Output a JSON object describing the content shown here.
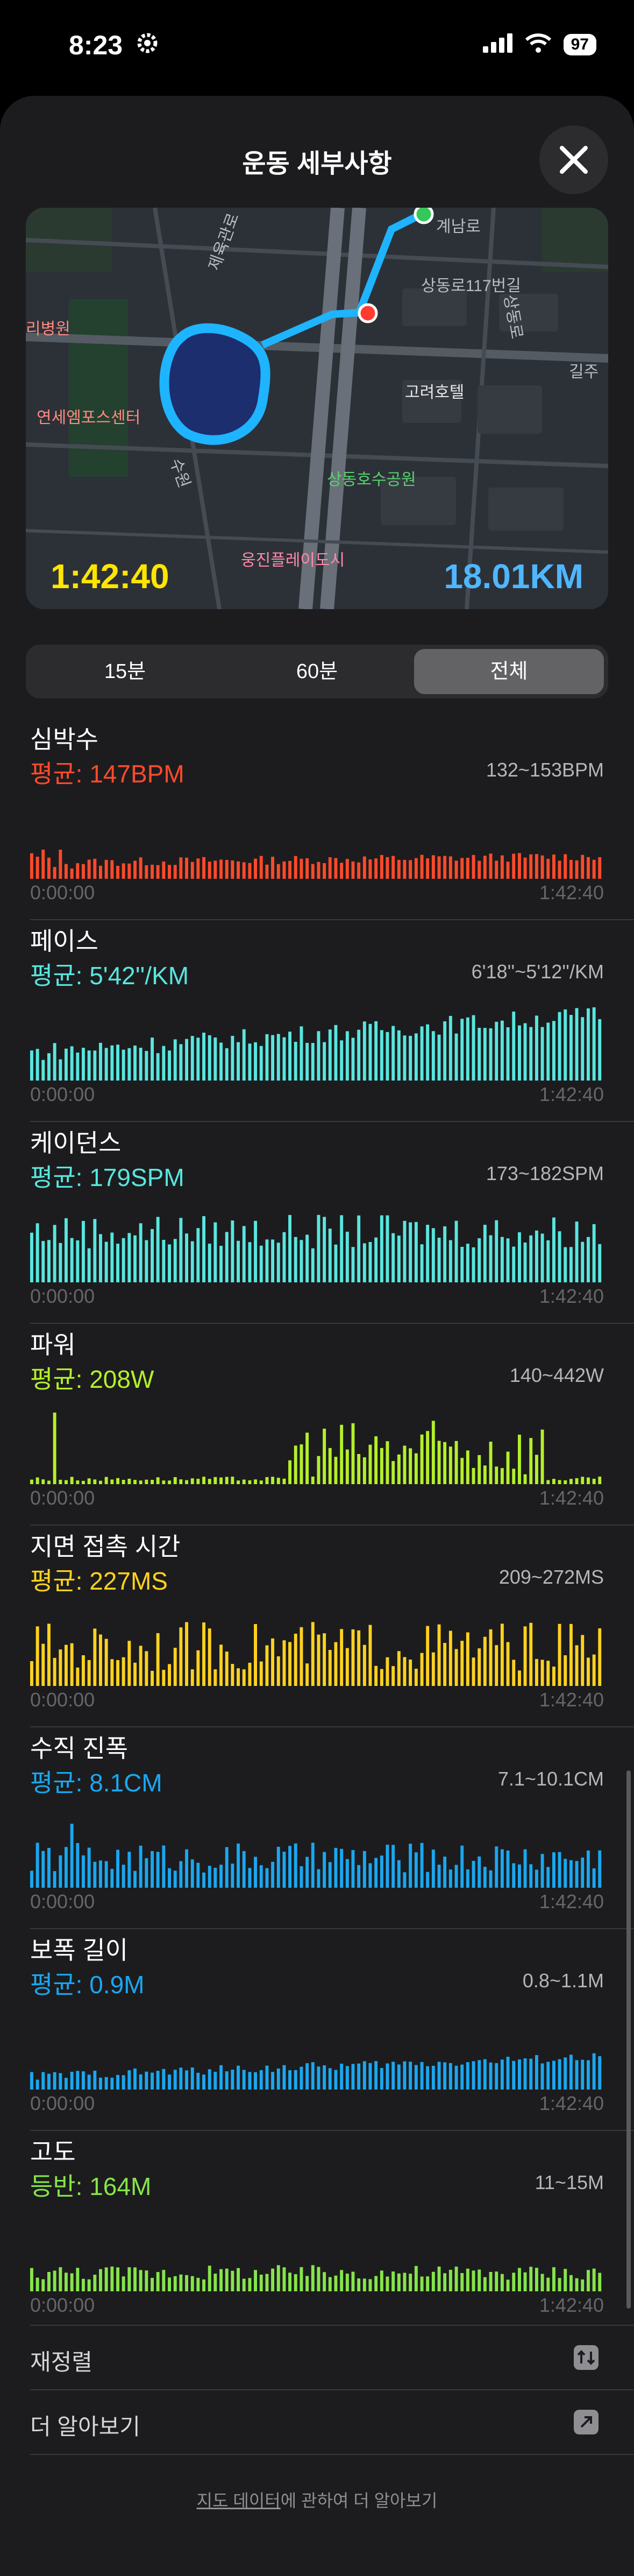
{
  "status_bar": {
    "time": "8:23",
    "battery": "97"
  },
  "header": {
    "title": "운동 세부사항"
  },
  "map": {
    "elapsed": "1:42:40",
    "distance": "18.01KM",
    "labels": [
      "계남로",
      "제육관로",
      "상동로117번길",
      "고려호텔",
      "리병원",
      "연세엠포스센터",
      "상동호수공원",
      "웅진플레이도시",
      "길주",
      "수원",
      "상동로"
    ]
  },
  "segments": [
    {
      "label": "15분",
      "selected": false
    },
    {
      "label": "60분",
      "selected": false
    },
    {
      "label": "전체",
      "selected": true
    }
  ],
  "metrics": [
    {
      "key": "hr",
      "title": "심박수",
      "avg": "평균: 147BPM",
      "range": "132~153BPM",
      "start": "0:00:00",
      "end": "1:42:40",
      "color": "#ff4a2a",
      "mode": "hr"
    },
    {
      "key": "pace",
      "title": "페이스",
      "avg": "평균: 5'42''/KM",
      "range": "6'18''~5'12''/KM",
      "start": "0:00:00",
      "end": "1:42:40",
      "color": "#58e6df",
      "mode": "pace"
    },
    {
      "key": "cadence",
      "title": "케이던스",
      "avg": "평균: 179SPM",
      "range": "173~182SPM",
      "start": "0:00:00",
      "end": "1:42:40",
      "color": "#58e6df",
      "mode": "cad"
    },
    {
      "key": "power",
      "title": "파워",
      "avg": "평균: 208W",
      "range": "140~442W",
      "start": "0:00:00",
      "end": "1:42:40",
      "color": "#b4f02a",
      "mode": "power"
    },
    {
      "key": "gct",
      "title": "지면 접촉 시간",
      "avg": "평균: 227MS",
      "range": "209~272MS",
      "start": "0:00:00",
      "end": "1:42:40",
      "color": "#ffd21f",
      "mode": "gct"
    },
    {
      "key": "vo",
      "title": "수직 진폭",
      "avg": "평균: 8.1CM",
      "range": "7.1~10.1CM",
      "start": "0:00:00",
      "end": "1:42:40",
      "color": "#1aa7f0",
      "mode": "vo"
    },
    {
      "key": "stride",
      "title": "보폭 길이",
      "avg": "평균: 0.9M",
      "range": "0.8~1.1M",
      "start": "0:00:00",
      "end": "1:42:40",
      "color": "#1aa7f0",
      "mode": "stride"
    },
    {
      "key": "elev",
      "title": "고도",
      "avg": "등반: 164M",
      "range": "11~15M",
      "start": "0:00:00",
      "end": "1:42:40",
      "color": "#86e54a",
      "mode": "elev"
    }
  ],
  "rows": {
    "reorder_label": "재정렬",
    "learn_more_label": "더 알아보기"
  },
  "footer": {
    "link_text": "지도 데이터",
    "rest_text": "에 관하여 더 알아보기"
  }
}
